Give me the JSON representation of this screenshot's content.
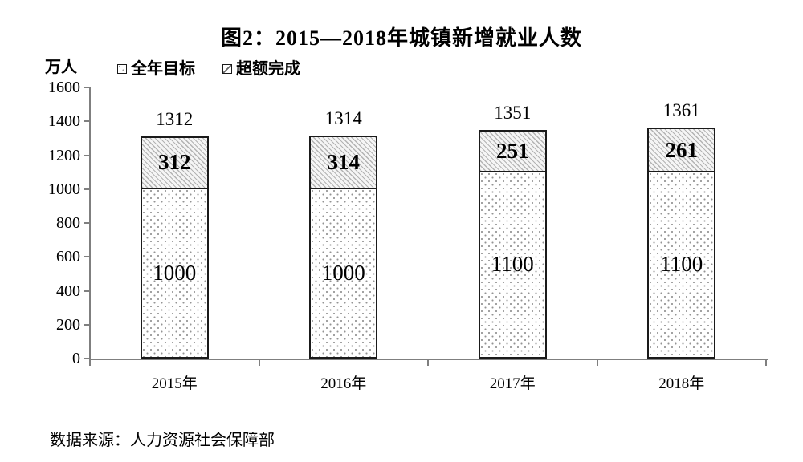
{
  "source": "数据来源：人力资源社会保障部",
  "chart_data": {
    "type": "bar",
    "stacked": true,
    "title": "图2：2015—2018年城镇新增就业人数",
    "unit": "万人",
    "categories": [
      "2015年",
      "2016年",
      "2017年",
      "2018年"
    ],
    "series": [
      {
        "name": "全年目标",
        "pattern": "dots",
        "values": [
          1000,
          1000,
          1100,
          1100
        ],
        "label_bold": false
      },
      {
        "name": "超额完成",
        "pattern": "hatch",
        "values": [
          312,
          314,
          251,
          261
        ],
        "label_bold": true
      }
    ],
    "totals": [
      1312,
      1314,
      1351,
      1361
    ],
    "ylim": [
      0,
      1600
    ],
    "yticks": [
      0,
      200,
      400,
      600,
      800,
      1000,
      1200,
      1400,
      1600
    ],
    "legend_position": "top-left",
    "grid": false,
    "colors": {
      "text": "#000000",
      "axis": "#7f7f7f",
      "bar_border": "#1a1a1a",
      "pattern_gray": "#9a9a9a",
      "background": "#ffffff"
    }
  }
}
